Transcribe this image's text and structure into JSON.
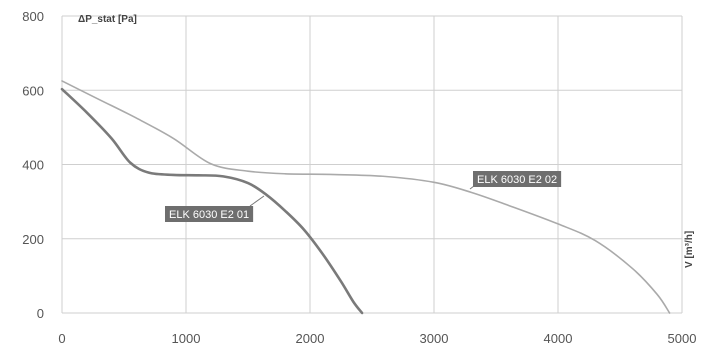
{
  "chart_data": {
    "type": "line",
    "ylabel": "ΔP_stat [Pa]",
    "xlabel": "V [m³/h]",
    "xlim": [
      0,
      5000
    ],
    "ylim": [
      0,
      800
    ],
    "x_ticks": [
      0,
      1000,
      2000,
      3000,
      4000,
      5000
    ],
    "y_ticks": [
      0,
      200,
      400,
      600,
      800
    ],
    "x_tick_labels": [
      "0",
      "1000",
      "2000",
      "3000",
      "4000",
      "5000"
    ],
    "y_tick_labels": [
      "0",
      "200",
      "400",
      "600",
      "800"
    ],
    "grid": true,
    "series": [
      {
        "name": "ELK 6030 E2 01",
        "color": "#7a7a7a",
        "points": [
          [
            0,
            603
          ],
          [
            200,
            540
          ],
          [
            400,
            470
          ],
          [
            550,
            405
          ],
          [
            700,
            378
          ],
          [
            900,
            372
          ],
          [
            1100,
            371
          ],
          [
            1300,
            368
          ],
          [
            1500,
            350
          ],
          [
            1650,
            318
          ],
          [
            1800,
            275
          ],
          [
            1950,
            225
          ],
          [
            2100,
            160
          ],
          [
            2250,
            85
          ],
          [
            2350,
            30
          ],
          [
            2420,
            0
          ]
        ]
      },
      {
        "name": "ELK 6030 E2 02",
        "color": "#aaaaaa",
        "points": [
          [
            0,
            625
          ],
          [
            300,
            575
          ],
          [
            600,
            525
          ],
          [
            900,
            470
          ],
          [
            1200,
            402
          ],
          [
            1500,
            382
          ],
          [
            1800,
            375
          ],
          [
            2200,
            373
          ],
          [
            2600,
            368
          ],
          [
            3000,
            352
          ],
          [
            3300,
            325
          ],
          [
            3600,
            290
          ],
          [
            4000,
            240
          ],
          [
            4300,
            195
          ],
          [
            4600,
            120
          ],
          [
            4800,
            50
          ],
          [
            4900,
            0
          ]
        ]
      }
    ]
  }
}
